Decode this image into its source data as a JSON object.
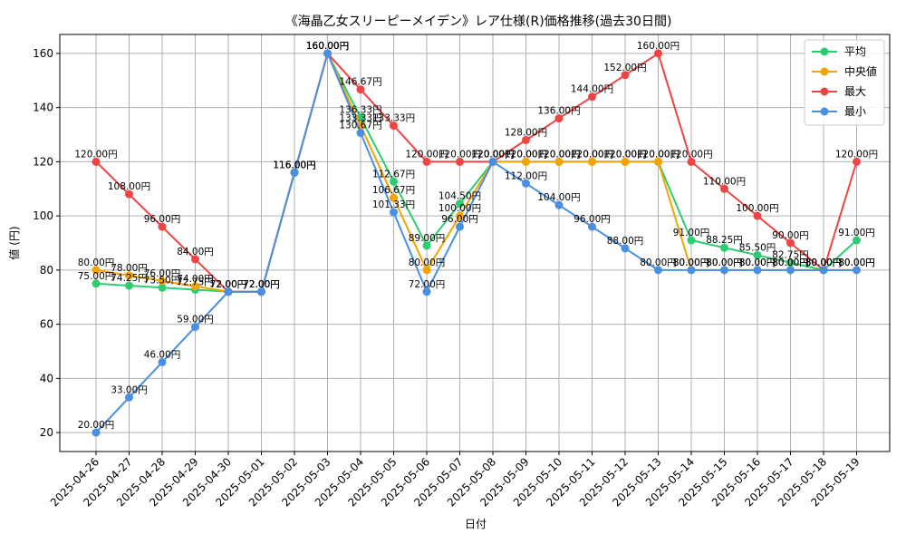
{
  "chart_data": {
    "type": "line",
    "title": "《海晶乙女スリーピーメイデン》レア仕様(R)価格推移(過去30日間)",
    "xlabel": "日付",
    "ylabel": "値 (円)",
    "ylim": [
      13,
      167
    ],
    "yticks": [
      20,
      40,
      60,
      80,
      100,
      120,
      140,
      160
    ],
    "grid": true,
    "legend_position": "top-right",
    "value_suffix": "円",
    "categories": [
      "2025-04-26",
      "2025-04-27",
      "2025-04-28",
      "2025-04-29",
      "2025-04-30",
      "2025-05-01",
      "2025-05-02",
      "2025-05-03",
      "2025-05-04",
      "2025-05-05",
      "2025-05-06",
      "2025-05-07",
      "2025-05-08",
      "2025-05-09",
      "2025-05-10",
      "2025-05-11",
      "2025-05-12",
      "2025-05-13",
      "2025-05-14",
      "2025-05-15",
      "2025-05-16",
      "2025-05-17",
      "2025-05-18",
      "2025-05-19"
    ],
    "series": [
      {
        "name": "平均",
        "color": "#2ecc71",
        "values": [
          75.0,
          74.25,
          73.5,
          72.75,
          72.0,
          72.0,
          116.0,
          160.0,
          136.33,
          112.67,
          89.0,
          104.5,
          120.0,
          120.0,
          120.0,
          120.0,
          120.0,
          120.0,
          91.0,
          88.25,
          85.5,
          82.75,
          80.0,
          91.0
        ]
      },
      {
        "name": "中央値",
        "color": "#f5a300",
        "values": [
          80.0,
          78.0,
          76.0,
          74.0,
          72.0,
          72.0,
          116.0,
          160.0,
          133.33,
          106.67,
          80.0,
          100.0,
          120.0,
          120.0,
          120.0,
          120.0,
          120.0,
          120.0,
          80.0,
          80.0,
          80.0,
          80.0,
          80.0,
          80.0
        ]
      },
      {
        "name": "最大",
        "color": "#ee4444",
        "values": [
          120.0,
          108.0,
          96.0,
          84.0,
          72.0,
          72.0,
          116.0,
          160.0,
          146.67,
          133.33,
          120.0,
          120.0,
          120.0,
          128.0,
          136.0,
          144.0,
          152.0,
          160.0,
          120.0,
          110.0,
          100.0,
          90.0,
          80.0,
          120.0
        ]
      },
      {
        "name": "最小",
        "color": "#4a90e2",
        "values": [
          20.0,
          33.0,
          46.0,
          59.0,
          72.0,
          72.0,
          116.0,
          160.0,
          130.67,
          101.33,
          72.0,
          96.0,
          120.0,
          112.0,
          104.0,
          96.0,
          88.0,
          80.0,
          80.0,
          80.0,
          80.0,
          80.0,
          80.0,
          80.0
        ]
      }
    ]
  }
}
